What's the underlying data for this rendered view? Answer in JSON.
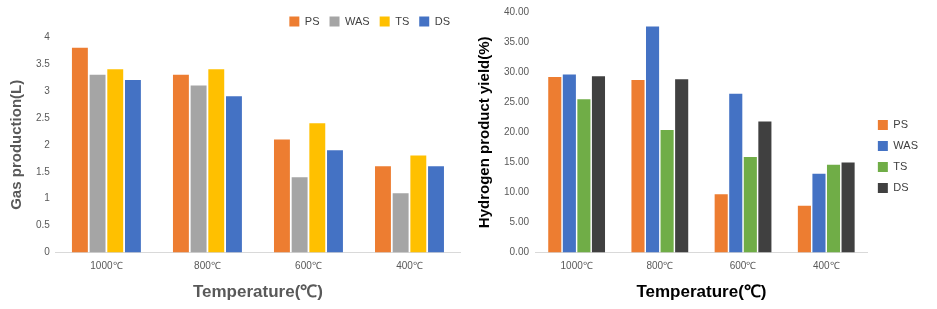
{
  "chart_data": [
    {
      "type": "bar",
      "x_label": "Temperature(℃)",
      "y_label": "Gas production(L)",
      "categories": [
        "1000℃",
        "800℃",
        "600℃",
        "400℃"
      ],
      "series": [
        {
          "name": "PS",
          "color": "#ED7D31",
          "values": [
            3.8,
            3.3,
            2.1,
            1.6
          ]
        },
        {
          "name": "WAS",
          "color": "#A5A5A5",
          "values": [
            3.3,
            3.1,
            1.4,
            1.1
          ]
        },
        {
          "name": "TS",
          "color": "#FFC000",
          "values": [
            3.4,
            3.4,
            2.4,
            1.8
          ]
        },
        {
          "name": "DS",
          "color": "#4472C4",
          "values": [
            3.2,
            2.9,
            1.9,
            1.6
          ]
        }
      ],
      "ylim": [
        0,
        4
      ],
      "yticks": [
        0,
        0.5,
        1,
        1.5,
        2,
        2.5,
        3,
        3.5,
        4
      ],
      "grid": false,
      "legend": "top right"
    },
    {
      "type": "bar",
      "x_label": "Temperature(℃)",
      "y_label": "Hydrogen product yield(%)",
      "categories": [
        "1000℃",
        "800℃",
        "600℃",
        "400℃"
      ],
      "series": [
        {
          "name": "PS",
          "color": "#ED7D31",
          "values": [
            29.2,
            28.7,
            9.7,
            7.8
          ]
        },
        {
          "name": "WAS",
          "color": "#4472C4",
          "values": [
            29.6,
            37.6,
            26.4,
            13.1
          ]
        },
        {
          "name": "TS",
          "color": "#70AD47",
          "values": [
            25.5,
            20.4,
            15.9,
            14.6
          ]
        },
        {
          "name": "DS",
          "color": "#404040",
          "values": [
            29.3,
            28.8,
            21.8,
            15.0
          ]
        }
      ],
      "ylim": [
        0,
        40
      ],
      "yticks": [
        {
          "value": 0,
          "label": "0.00"
        },
        {
          "value": 5,
          "label": "5.00"
        },
        {
          "value": 10,
          "label": "10.00"
        },
        {
          "value": 15,
          "label": "15.00"
        },
        {
          "value": 20,
          "label": "20.00"
        },
        {
          "value": 25,
          "label": "25.00"
        },
        {
          "value": 30,
          "label": "30.00"
        },
        {
          "value": 35,
          "label": "35.00"
        },
        {
          "value": 40,
          "label": "40.00"
        }
      ],
      "grid": false,
      "legend": "right"
    }
  ]
}
